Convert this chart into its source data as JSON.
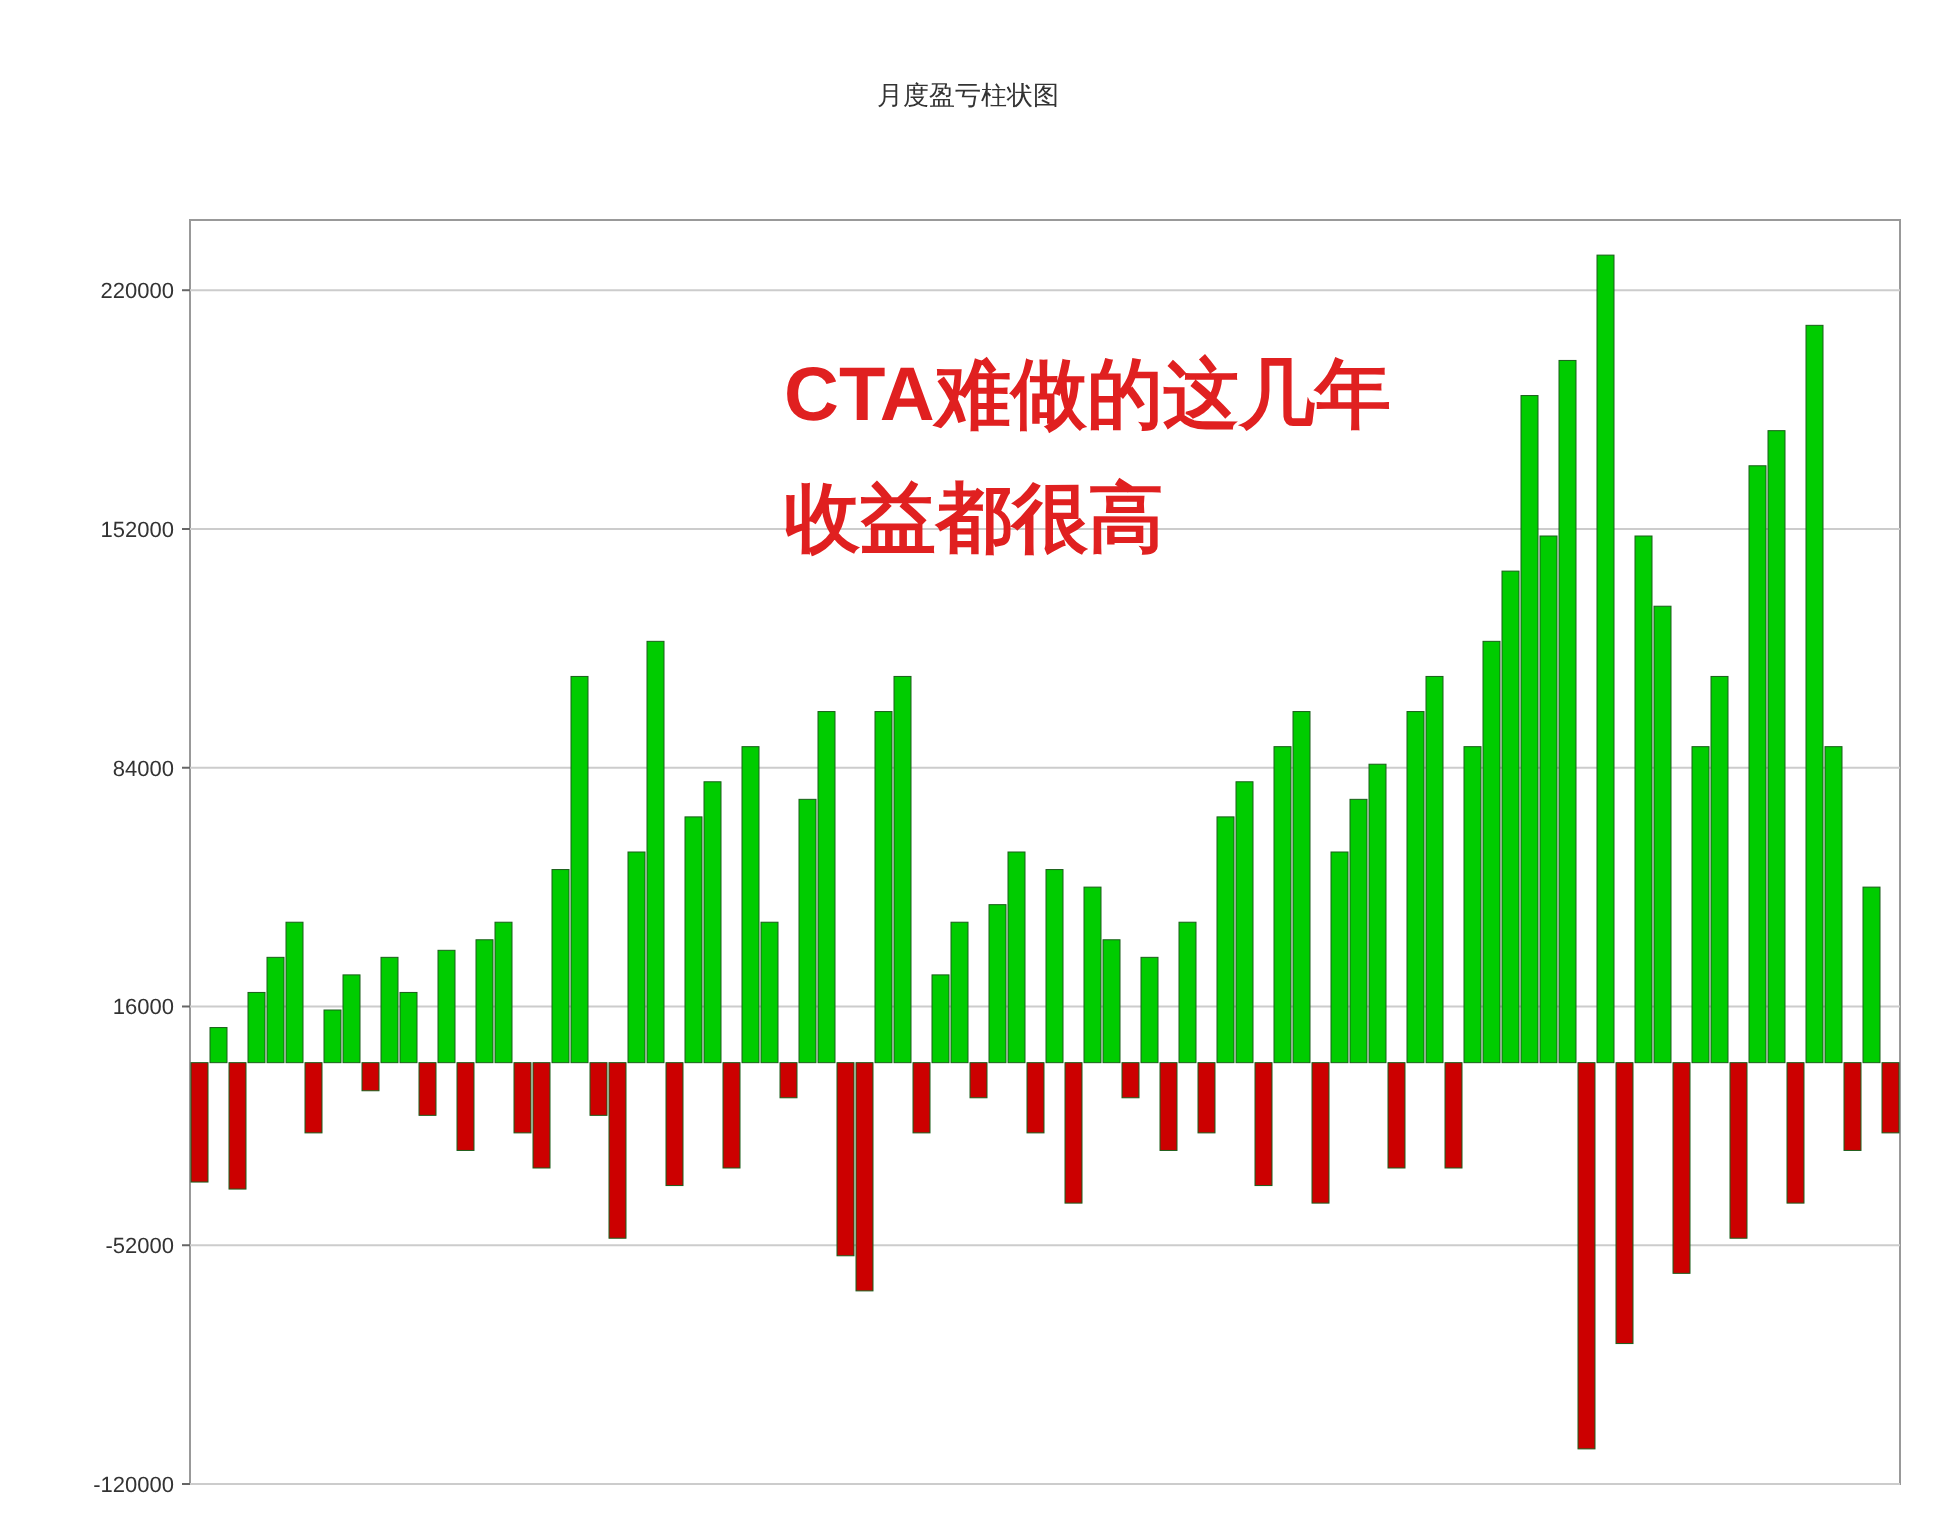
{
  "chart_data": {
    "type": "bar",
    "title": "月度盈亏柱状图",
    "annotations": [
      "CTA难做的这几年",
      "收益都很高"
    ],
    "categories": [
      null,
      null,
      null,
      null,
      null,
      null,
      null,
      null,
      null,
      null,
      null,
      null,
      null,
      null,
      null,
      null,
      null,
      null,
      null,
      null,
      null,
      null,
      null,
      null,
      null,
      null,
      null,
      null,
      null,
      null,
      null,
      null,
      null,
      null,
      null,
      null,
      null,
      null,
      null,
      null,
      null,
      null,
      null,
      null,
      null,
      null,
      null,
      null,
      null,
      null,
      null,
      null,
      null,
      null,
      null,
      null,
      null,
      null,
      null,
      null,
      null,
      null,
      null,
      null,
      null,
      null,
      null,
      null,
      null,
      null,
      null,
      null,
      null,
      null,
      null,
      null,
      null,
      null,
      null,
      null,
      null,
      null,
      null,
      null,
      null,
      null,
      null,
      null,
      null,
      null
    ],
    "values": [
      -34000,
      10000,
      -36000,
      20000,
      30000,
      40000,
      -20000,
      15000,
      25000,
      -8000,
      30000,
      20000,
      -15000,
      32000,
      -25000,
      35000,
      40000,
      -20000,
      -30000,
      55000,
      110000,
      -15000,
      -50000,
      60000,
      120000,
      -35000,
      70000,
      80000,
      -30000,
      90000,
      40000,
      -10000,
      75000,
      100000,
      -55000,
      -65000,
      100000,
      110000,
      -20000,
      25000,
      40000,
      -10000,
      45000,
      60000,
      -20000,
      55000,
      -40000,
      50000,
      35000,
      -10000,
      30000,
      -25000,
      40000,
      -20000,
      70000,
      80000,
      -35000,
      90000,
      100000,
      -40000,
      60000,
      75000,
      85000,
      -30000,
      100000,
      110000,
      -30000,
      90000,
      120000,
      140000,
      190000,
      150000,
      200000,
      -110000,
      230000,
      -80000,
      150000,
      130000,
      -60000,
      90000,
      110000,
      -50000,
      170000,
      180000,
      -40000,
      210000,
      90000,
      -25000,
      50000,
      -20000
    ],
    "colors": [
      "#cc0000",
      "#00cc00",
      "#cc0000",
      "#00cc00",
      "#00cc00",
      "#00cc00",
      "#cc0000",
      "#00cc00",
      "#00cc00",
      "#cc0000",
      "#00cc00",
      "#00cc00",
      "#cc0000",
      "#00cc00",
      "#cc0000",
      "#00cc00",
      "#00cc00",
      "#cc0000",
      "#cc0000",
      "#00cc00",
      "#00cc00",
      "#cc0000",
      "#cc0000",
      "#00cc00",
      "#00cc00",
      "#cc0000",
      "#00cc00",
      "#00cc00",
      "#cc0000",
      "#00cc00",
      "#00cc00",
      "#cc0000",
      "#00cc00",
      "#00cc00",
      "#cc0000",
      "#cc0000",
      "#00cc00",
      "#00cc00",
      "#cc0000",
      "#00cc00",
      "#00cc00",
      "#cc0000",
      "#00cc00",
      "#00cc00",
      "#cc0000",
      "#00cc00",
      "#cc0000",
      "#00cc00",
      "#00cc00",
      "#cc0000",
      "#00cc00",
      "#cc0000",
      "#00cc00",
      "#cc0000",
      "#00cc00",
      "#00cc00",
      "#cc0000",
      "#00cc00",
      "#00cc00",
      "#cc0000",
      "#00cc00",
      "#00cc00",
      "#00cc00",
      "#cc0000",
      "#00cc00",
      "#00cc00",
      "#cc0000",
      "#00cc00",
      "#00cc00",
      "#00cc00",
      "#00cc00",
      "#00cc00",
      "#00cc00",
      "#cc0000",
      "#00cc00",
      "#cc0000",
      "#00cc00",
      "#00cc00",
      "#cc0000",
      "#00cc00",
      "#00cc00",
      "#cc0000",
      "#00cc00",
      "#00cc00",
      "#cc0000",
      "#00cc00",
      "#00cc00",
      "#cc0000",
      "#00cc00",
      "#cc0000"
    ],
    "ylim": [
      -120000,
      240000
    ],
    "yticks": [
      -120000,
      -52000,
      16000,
      84000,
      152000,
      220000
    ],
    "grid": "y"
  }
}
